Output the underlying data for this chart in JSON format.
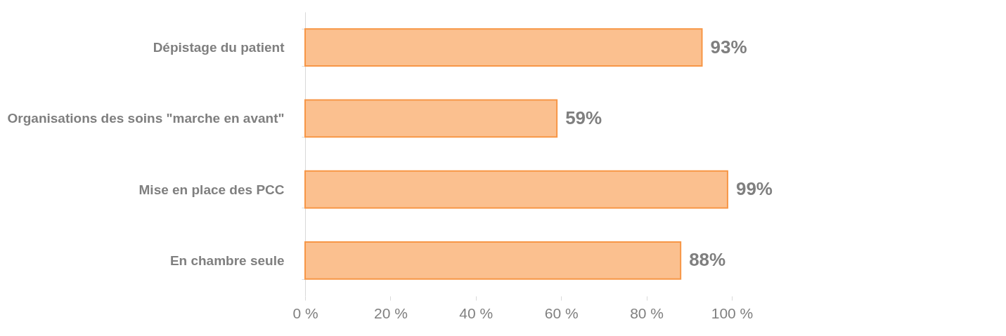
{
  "chart_data": {
    "type": "bar",
    "orientation": "horizontal",
    "categories": [
      "Dépistage du patient",
      "Organisations des soins \"marche en avant\"",
      "Mise en place des PCC",
      "En chambre seule"
    ],
    "values": [
      93,
      59,
      99,
      88
    ],
    "value_labels": [
      "93%",
      "59%",
      "99%",
      "88%"
    ],
    "color": "#fbc08f",
    "xlim": [
      0,
      100
    ],
    "xticks": [
      {
        "value": 0,
        "label": "0 %"
      },
      {
        "value": 20,
        "label": "20 %"
      },
      {
        "value": 40,
        "label": "40 %"
      },
      {
        "value": 60,
        "label": "60 %"
      },
      {
        "value": 80,
        "label": "80 %"
      },
      {
        "value": 100,
        "label": "100 %"
      }
    ],
    "grid": false
  }
}
